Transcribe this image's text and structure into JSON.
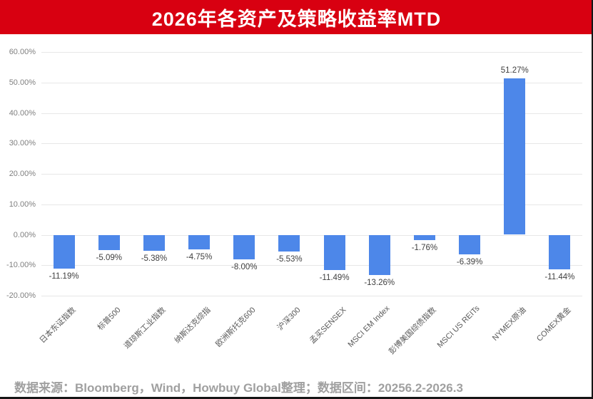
{
  "header": {
    "title": "2026年各资产及策略收益率MTD"
  },
  "footer": {
    "text": "数据来源：Bloomberg，Wind，Howbuy Global整理；数据区间：20256.2-2026.3"
  },
  "colors": {
    "header_bg": "#d80011",
    "header_text": "#ffffff",
    "bar": "#4d87e9",
    "gridline": "#e7e7e7",
    "axis_tick_text": "#7f7f7f",
    "value_label_text": "#3f3f3f",
    "category_label_text": "#595959",
    "footer_text": "#a0a0a0",
    "edge_line": "#161616"
  },
  "chart_data": {
    "type": "bar",
    "title": "2026年各资产及策略收益率MTD",
    "categories": [
      "日本东证指数",
      "标普500",
      "道琼斯工业指数",
      "纳斯达克综指",
      "欧洲斯托克600",
      "沪深300",
      "孟买SENSEX",
      "MSCI EM Index",
      "彭博美国综债指数",
      "MSCI US REITs",
      "NYMEX原油",
      "COMEX黄金"
    ],
    "values": [
      -11.19,
      -5.09,
      -5.38,
      -4.75,
      -8.0,
      -5.53,
      -11.49,
      -13.26,
      -1.76,
      -6.39,
      51.27,
      -11.44
    ],
    "value_labels": [
      "-11.19%",
      "-5.09%",
      "-5.38%",
      "-4.75%",
      "-8.00%",
      "-5.53%",
      "-11.49%",
      "-13.26%",
      "-1.76%",
      "-6.39%",
      "51.27%",
      "-11.44%"
    ],
    "xlabel": "",
    "ylabel": "",
    "ylim": [
      -20,
      60
    ],
    "ytick_step": 10,
    "ytick_labels": [
      "60.00%",
      "50.00%",
      "40.00%",
      "30.00%",
      "20.00%",
      "10.00%",
      "0.00%",
      "-10.00%",
      "-20.00%"
    ],
    "grid": true,
    "legend_position": "none"
  }
}
